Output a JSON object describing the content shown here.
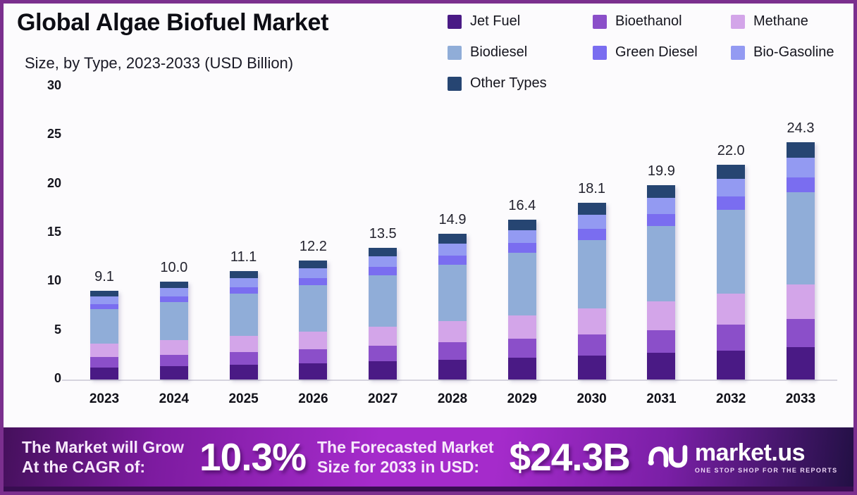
{
  "header": {
    "title": "Global Algae Biofuel Market",
    "subtitle": "Size, by Type, 2023-2033 (USD Billion)"
  },
  "chart_data": {
    "type": "bar",
    "stacked": true,
    "title": "Global Algae Biofuel Market",
    "subtitle": "Size, by Type, 2023-2033 (USD Billion)",
    "unit": "USD Billion",
    "categories": [
      "2023",
      "2024",
      "2025",
      "2026",
      "2027",
      "2028",
      "2029",
      "2030",
      "2031",
      "2032",
      "2033"
    ],
    "totals": [
      9.1,
      10.0,
      11.1,
      12.2,
      13.5,
      14.9,
      16.4,
      18.1,
      19.9,
      22.0,
      24.3
    ],
    "total_labels": [
      "9.1",
      "10.0",
      "11.1",
      "12.2",
      "13.5",
      "14.9",
      "16.4",
      "18.1",
      "19.9",
      "22.0",
      "24.3"
    ],
    "ylim": [
      0,
      30
    ],
    "yticks": [
      0,
      5,
      10,
      15,
      20,
      25,
      30
    ],
    "grid": false,
    "legend_position": "top-right",
    "series": [
      {
        "name": "Jet Fuel",
        "color": "#4a1a85",
        "values": [
          1.24,
          1.36,
          1.51,
          1.66,
          1.84,
          2.03,
          2.23,
          2.46,
          2.71,
          2.99,
          3.3
        ]
      },
      {
        "name": "Bioethanol",
        "color": "#8b4fc9",
        "values": [
          1.08,
          1.19,
          1.32,
          1.45,
          1.61,
          1.77,
          1.95,
          2.15,
          2.37,
          2.62,
          2.89
        ]
      },
      {
        "name": "Methane",
        "color": "#d3a5e9",
        "values": [
          1.33,
          1.46,
          1.62,
          1.78,
          1.97,
          2.18,
          2.39,
          2.64,
          2.91,
          3.21,
          3.55
        ]
      },
      {
        "name": "Biodiesel",
        "color": "#90add8",
        "values": [
          3.54,
          3.89,
          4.32,
          4.75,
          5.25,
          5.8,
          6.38,
          7.04,
          7.74,
          8.56,
          9.45
        ]
      },
      {
        "name": "Green Diesel",
        "color": "#7a6df0",
        "values": [
          0.56,
          0.62,
          0.69,
          0.76,
          0.84,
          0.92,
          1.02,
          1.12,
          1.23,
          1.36,
          1.51
        ]
      },
      {
        "name": "Bio-Gasoline",
        "color": "#939af2",
        "values": [
          0.75,
          0.82,
          0.91,
          1.0,
          1.11,
          1.22,
          1.34,
          1.48,
          1.63,
          1.8,
          1.99
        ]
      },
      {
        "name": "Other Types",
        "color": "#264572",
        "values": [
          0.6,
          0.66,
          0.73,
          0.8,
          0.88,
          0.98,
          1.09,
          1.21,
          1.31,
          1.46,
          1.61
        ]
      }
    ]
  },
  "banner": {
    "grow_line1": "The Market will Grow",
    "grow_line2": "At the CAGR of:",
    "cagr_value": "10.3%",
    "forecast_line1": "The Forecasted Market",
    "forecast_line2": "Size for 2033 in USD:",
    "forecast_value": "$24.3B",
    "brand_name": "market.us",
    "brand_tagline": "ONE STOP SHOP FOR THE REPORTS"
  },
  "colors": {
    "frame_border": "#7b2f8e",
    "background": "#fcfbfd",
    "axis_line": "#d6d4de",
    "banner_gradient_left": "#45105c",
    "banner_gradient_mid": "#a52bcb",
    "banner_gradient_right": "#221044",
    "banner_strip": "#380d51"
  }
}
